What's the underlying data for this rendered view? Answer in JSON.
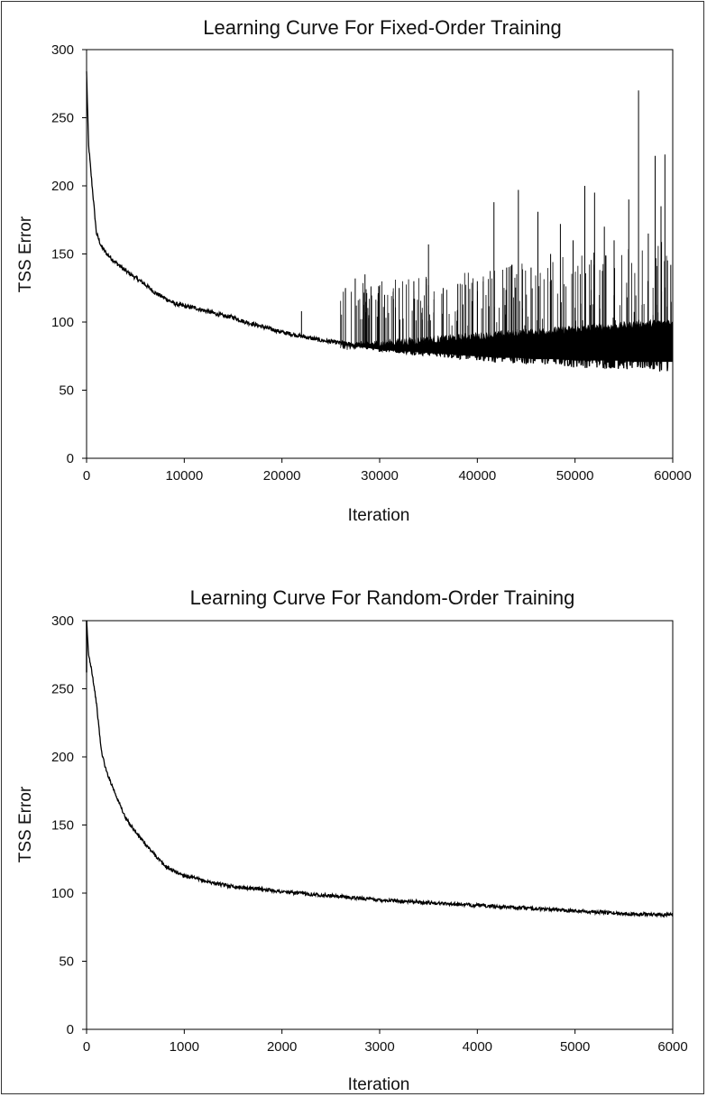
{
  "chart_data": [
    {
      "type": "line",
      "title": "Learning Curve For Fixed-Order Training",
      "xlabel": "Iteration",
      "ylabel": "TSS Error",
      "xlim": [
        0,
        60000
      ],
      "ylim": [
        0,
        300
      ],
      "xticks": [
        "0",
        "10000",
        "20000",
        "30000",
        "40000",
        "50000",
        "60000"
      ],
      "yticks": [
        "0",
        "50",
        "100",
        "150",
        "200",
        "250",
        "300"
      ],
      "grid": false,
      "legend": "none",
      "series_color": "#000000",
      "x": [
        0,
        200,
        500,
        1000,
        1500,
        2000,
        3000,
        4000,
        5000,
        6000,
        7000,
        8000,
        9000,
        10000,
        11000,
        12000,
        13000,
        14000,
        15000,
        16000,
        18000,
        20000,
        22000,
        24000,
        26000,
        28000,
        30000,
        32000,
        34000,
        36000,
        38000,
        40000,
        42000,
        44000,
        46000,
        48000,
        50000,
        52000,
        54000,
        56000,
        58000,
        60000
      ],
      "y": [
        283,
        230,
        205,
        165,
        155,
        150,
        143,
        137,
        132,
        127,
        121,
        117,
        113,
        111,
        110,
        108,
        106,
        104,
        103,
        100,
        96,
        92,
        89,
        86,
        84,
        82,
        80,
        79,
        78,
        77,
        76,
        75,
        74,
        74,
        73,
        73,
        72,
        72,
        72,
        71,
        71,
        71
      ],
      "spikes": [
        [
          22000,
          108
        ],
        [
          26500,
          125
        ],
        [
          27500,
          132
        ],
        [
          28500,
          135
        ],
        [
          30500,
          120
        ],
        [
          32000,
          125
        ],
        [
          33500,
          130
        ],
        [
          35000,
          157
        ],
        [
          36500,
          125
        ],
        [
          38000,
          128
        ],
        [
          40000,
          130
        ],
        [
          41700,
          188
        ],
        [
          43000,
          140
        ],
        [
          44200,
          197
        ],
        [
          45500,
          140
        ],
        [
          46200,
          181
        ],
        [
          47500,
          150
        ],
        [
          48500,
          172
        ],
        [
          49800,
          160
        ],
        [
          51000,
          200
        ],
        [
          52000,
          195
        ],
        [
          53000,
          170
        ],
        [
          54000,
          160
        ],
        [
          55500,
          190
        ],
        [
          56500,
          270
        ],
        [
          57500,
          165
        ],
        [
          58200,
          222
        ],
        [
          58800,
          185
        ],
        [
          59200,
          223
        ],
        [
          59800,
          142
        ]
      ]
    },
    {
      "type": "line",
      "title": "Learning Curve For Random-Order Training",
      "xlabel": "Iteration",
      "ylabel": "TSS Error",
      "xlim": [
        0,
        6000
      ],
      "ylim": [
        0,
        300
      ],
      "xticks": [
        "0",
        "1000",
        "2000",
        "3000",
        "4000",
        "5000",
        "6000"
      ],
      "yticks": [
        "0",
        "50",
        "100",
        "150",
        "200",
        "250",
        "300"
      ],
      "grid": false,
      "legend": "none",
      "series_color": "#000000",
      "x": [
        0,
        20,
        50,
        100,
        150,
        200,
        300,
        400,
        500,
        600,
        700,
        800,
        900,
        1000,
        1200,
        1400,
        1600,
        1800,
        2000,
        2500,
        3000,
        3500,
        4000,
        4500,
        5000,
        5500,
        6000
      ],
      "y": [
        300,
        275,
        265,
        240,
        205,
        190,
        172,
        155,
        145,
        136,
        128,
        120,
        116,
        113,
        109,
        106,
        104,
        103,
        101,
        98,
        95,
        93,
        91,
        89,
        87,
        85,
        84
      ]
    }
  ]
}
